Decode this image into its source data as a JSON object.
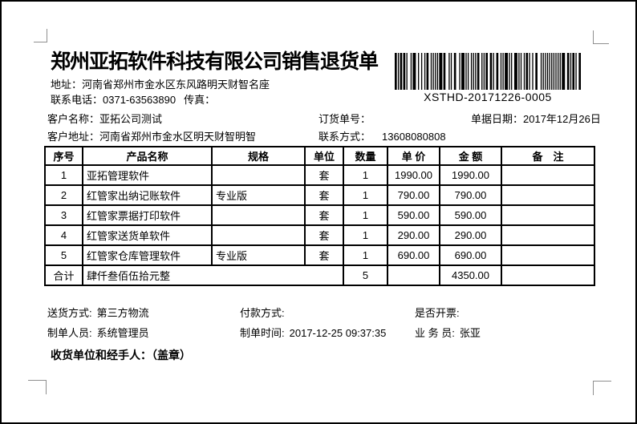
{
  "page": {
    "title": "郑州亚拓软件科技有限公司销售退货单",
    "address_label": "地址：",
    "address": "河南省郑州市金水区东风路明天财智名座",
    "phone_label": "联系电话：",
    "phone": "0371-63563890",
    "fax_label": "传真："
  },
  "barcode": {
    "value": "XSTHD-20171226-0005"
  },
  "info": {
    "customer_name_label": "客户名称：",
    "customer_name": "亚拓公司测试",
    "order_no_label": "订货单号：",
    "order_no": "",
    "doc_date_label": "单据日期：",
    "doc_date": "2017年12月26日",
    "customer_address_label": "客户地址：",
    "customer_address": "河南省郑州市金水区明天财智明智",
    "contact_label": "联系方式：",
    "contact": "13608080808"
  },
  "table": {
    "headers": [
      "序号",
      "产品名称",
      "规格",
      "单位",
      "数量",
      "单 价",
      "金 额",
      "备　注"
    ],
    "rows": [
      [
        "1",
        "亚拓管理软件",
        "",
        "套",
        "1",
        "1990.00",
        "1990.00",
        ""
      ],
      [
        "2",
        "红管家出纳记账软件",
        "专业版",
        "套",
        "1",
        "790.00",
        "790.00",
        ""
      ],
      [
        "3",
        "红管家票据打印软件",
        "",
        "套",
        "1",
        "590.00",
        "590.00",
        ""
      ],
      [
        "4",
        "红管家送货单软件",
        "",
        "套",
        "1",
        "290.00",
        "290.00",
        ""
      ],
      [
        "5",
        "红管家仓库管理软件",
        "专业版",
        "套",
        "1",
        "690.00",
        "690.00",
        ""
      ]
    ],
    "total": {
      "label": "合计",
      "amount_in_words": "肆仟叁佰伍拾元整",
      "quantity": "5",
      "unit_price": "",
      "amount": "4350.00",
      "remark": ""
    }
  },
  "footer": {
    "delivery_label": "送货方式:",
    "delivery": "第三方物流",
    "payment_label": "付款方式:",
    "payment": "",
    "invoice_label": "是否开票:",
    "invoice": "",
    "maker_label": "制单人员:",
    "maker": "系统管理员",
    "make_time_label": "制单时间:",
    "make_time": "2017-12-25 09:37:35",
    "salesman_label": "业 务 员:",
    "salesman": "张亚",
    "stamp_line": "收货单位和经手人：（盖章）"
  }
}
